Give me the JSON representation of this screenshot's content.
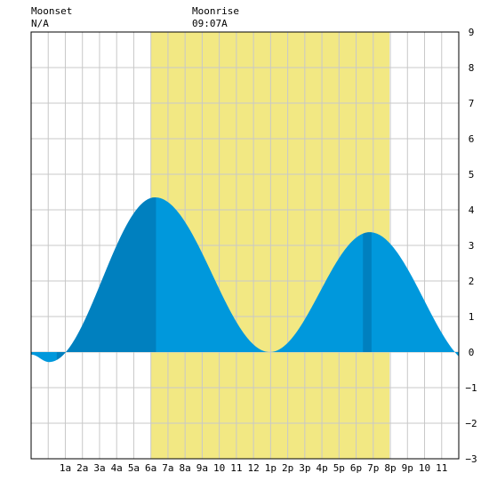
{
  "header": {
    "moonset_label": "Moonset",
    "moonset_time": "N/A",
    "moonrise_label": "Moonrise",
    "moonrise_time": "09:07A"
  },
  "colors": {
    "background": "#ffffff",
    "grid": "#c8c8c8",
    "frame": "#000000",
    "daylight_band": "#f2e883",
    "tide_dark": "#0080bf",
    "tide_light": "#0098dc"
  },
  "chart_data": {
    "type": "area",
    "x_unit": "hours since midnight",
    "x_range": [
      -1,
      24
    ],
    "y_range": [
      -3,
      9
    ],
    "x_tick_labels": [
      {
        "hour": 1,
        "label": "1a"
      },
      {
        "hour": 2,
        "label": "2a"
      },
      {
        "hour": 3,
        "label": "3a"
      },
      {
        "hour": 4,
        "label": "4a"
      },
      {
        "hour": 5,
        "label": "5a"
      },
      {
        "hour": 6,
        "label": "6a"
      },
      {
        "hour": 7,
        "label": "7a"
      },
      {
        "hour": 8,
        "label": "8a"
      },
      {
        "hour": 9,
        "label": "9a"
      },
      {
        "hour": 10,
        "label": "10"
      },
      {
        "hour": 11,
        "label": "11"
      },
      {
        "hour": 12,
        "label": "12"
      },
      {
        "hour": 13,
        "label": "1p"
      },
      {
        "hour": 14,
        "label": "2p"
      },
      {
        "hour": 15,
        "label": "3p"
      },
      {
        "hour": 16,
        "label": "4p"
      },
      {
        "hour": 17,
        "label": "5p"
      },
      {
        "hour": 18,
        "label": "6p"
      },
      {
        "hour": 19,
        "label": "7p"
      },
      {
        "hour": 20,
        "label": "8p"
      },
      {
        "hour": 21,
        "label": "9p"
      },
      {
        "hour": 22,
        "label": "10"
      },
      {
        "hour": 23,
        "label": "11"
      }
    ],
    "y_ticks": [
      -3,
      -2,
      -1,
      0,
      1,
      2,
      3,
      4,
      5,
      6,
      7,
      8,
      9
    ],
    "daylight": {
      "start_hour": 6.0,
      "end_hour": 19.95
    },
    "tide_extremes": [
      {
        "hour": -1.0,
        "height": -0.07
      },
      {
        "hour": 0.05,
        "height": -0.28
      },
      {
        "hour": 6.25,
        "height": 4.35
      },
      {
        "hour": 12.95,
        "height": 0.0
      },
      {
        "hour": 18.8,
        "height": 3.37
      },
      {
        "hour": 25.1,
        "height": -0.4
      }
    ],
    "dark_shading": [
      {
        "from_hour": 0.5,
        "to_hour": 6.3
      },
      {
        "from_hour": 18.4,
        "to_hour": 18.9
      }
    ],
    "grid": true
  }
}
